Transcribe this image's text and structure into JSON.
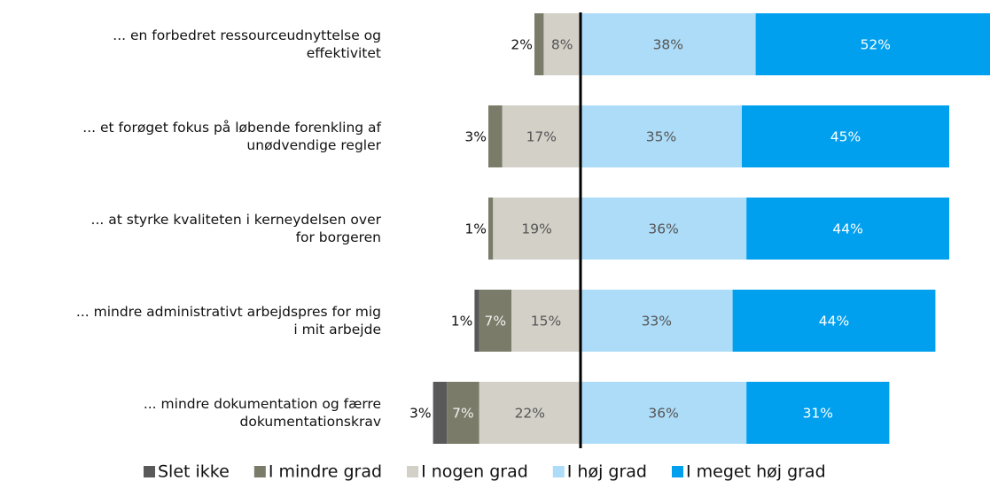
{
  "chart_data": {
    "type": "diverging_bar",
    "categories": [
      "... en forbedret ressourceudnyttelse og\neffektivitet",
      "... et forøget fokus på løbende forenkling af\nunødvendige regler",
      "... at styrke kvaliteten i kerneydelsen over\nfor borgeren",
      "... mindre administrativt arbejdspres for mig\ni mit arbejde",
      "... mindre dokumentation og færre\ndokumentationskrav"
    ],
    "series": [
      {
        "name": "Slet ikke",
        "color": "#595959",
        "values": [
          null,
          null,
          null,
          1,
          3
        ],
        "value_labels": [
          null,
          null,
          null,
          "1%",
          "3%"
        ]
      },
      {
        "name": "I mindre grad",
        "color": "#7b7b69",
        "values": [
          2,
          3,
          1,
          7,
          7
        ],
        "value_labels": [
          "2%",
          "3%",
          "1%",
          "7%",
          "7%"
        ]
      },
      {
        "name": "I nogen grad",
        "color": "#d3d0c8",
        "values": [
          8,
          17,
          19,
          15,
          22
        ],
        "value_labels": [
          "8%",
          "17%",
          "19%",
          "15%",
          "22%"
        ]
      },
      {
        "name": "I høj grad",
        "color": "#addcf8",
        "values": [
          38,
          35,
          36,
          33,
          36
        ],
        "value_labels": [
          "38%",
          "35%",
          "36%",
          "33%",
          "36%"
        ]
      },
      {
        "name": "I meget høj grad",
        "color": "#00a0ee",
        "values": [
          52,
          45,
          44,
          44,
          31
        ],
        "value_labels": [
          "52%",
          "45%",
          "44%",
          "44%",
          "31%"
        ]
      }
    ],
    "negative_series": 3
  }
}
